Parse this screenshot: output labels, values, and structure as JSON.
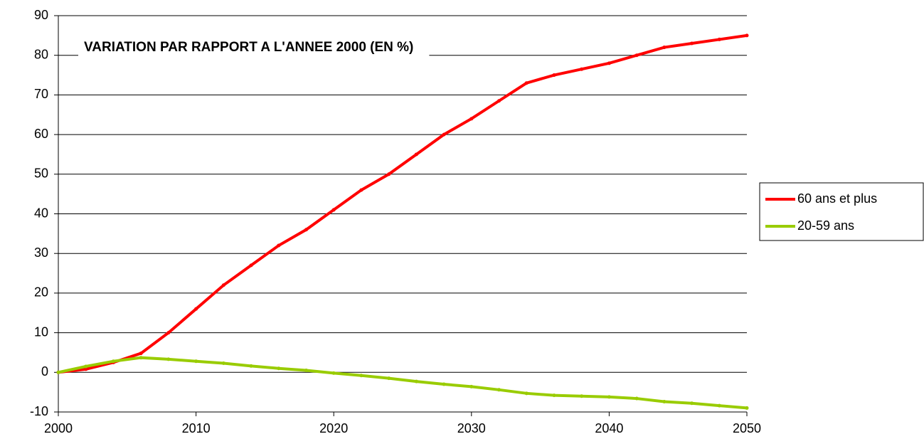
{
  "chart_data": {
    "type": "line",
    "annotation": "VARIATION PAR RAPPORT A L'ANNEE 2000 (EN %)",
    "x": [
      2000,
      2002,
      2004,
      2006,
      2008,
      2010,
      2012,
      2014,
      2016,
      2018,
      2020,
      2022,
      2024,
      2026,
      2028,
      2030,
      2032,
      2034,
      2036,
      2038,
      2040,
      2042,
      2044,
      2046,
      2048,
      2050
    ],
    "series": [
      {
        "name": "60 ans et plus",
        "color": "#ff0000",
        "values": [
          0,
          0.8,
          2.5,
          4.8,
          10,
          16,
          22,
          27,
          32,
          36,
          41,
          46,
          50,
          55,
          60,
          64,
          68.5,
          73,
          75,
          76.5,
          78,
          80,
          82,
          83,
          84,
          85
        ]
      },
      {
        "name": "20-59 ans",
        "color": "#99cc00",
        "values": [
          0,
          1.5,
          2.8,
          3.7,
          3.3,
          2.8,
          2.3,
          1.6,
          1,
          0.5,
          -0.2,
          -0.8,
          -1.5,
          -2.3,
          -3,
          -3.6,
          -4.4,
          -5.3,
          -5.8,
          -6,
          -6.2,
          -6.6,
          -7.4,
          -7.8,
          -8.4,
          -9
        ]
      }
    ],
    "xlim": [
      2000,
      2050
    ],
    "xticks": [
      2000,
      2010,
      2020,
      2030,
      2040,
      2050
    ],
    "ylim": [
      -10,
      90
    ],
    "yticks": [
      -10,
      0,
      10,
      20,
      30,
      40,
      50,
      60,
      70,
      80,
      90
    ],
    "grid": true,
    "legend": "right"
  }
}
